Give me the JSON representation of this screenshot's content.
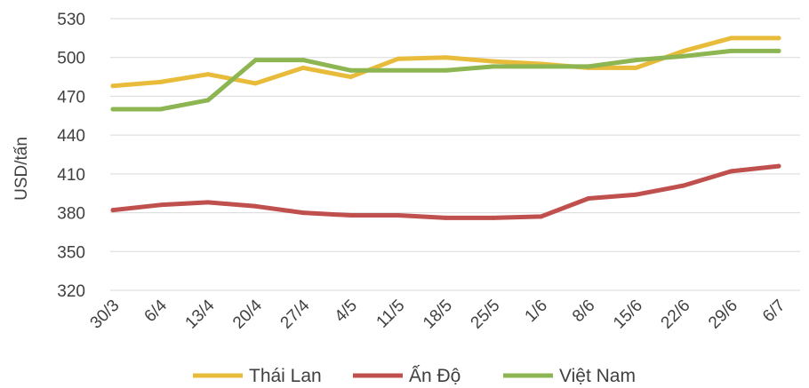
{
  "chart_data": {
    "type": "line",
    "title": "",
    "xlabel": "",
    "ylabel": "USD/tấn",
    "ylim": [
      320,
      530
    ],
    "yticks": [
      320,
      350,
      380,
      410,
      440,
      470,
      500,
      530
    ],
    "grid": "horizontal",
    "legend_position": "bottom",
    "categories": [
      "30/3",
      "6/4",
      "13/4",
      "20/4",
      "27/4",
      "4/5",
      "11/5",
      "18/5",
      "25/5",
      "1/6",
      "8/6",
      "15/6",
      "22/6",
      "29/6",
      "6/7"
    ],
    "series": [
      {
        "name": "Thái Lan",
        "color": "#E8BC3A",
        "values": [
          478,
          481,
          487,
          480,
          492,
          485,
          499,
          500,
          497,
          495,
          492,
          492,
          505,
          515,
          515
        ]
      },
      {
        "name": "Ấn Độ",
        "color": "#C0504D",
        "values": [
          382,
          386,
          388,
          385,
          380,
          378,
          378,
          376,
          376,
          377,
          391,
          394,
          401,
          412,
          416
        ]
      },
      {
        "name": "Việt Nam",
        "color": "#8DB552",
        "values": [
          460,
          460,
          467,
          498,
          498,
          490,
          490,
          490,
          493,
          493,
          493,
          498,
          501,
          505,
          505
        ]
      }
    ]
  }
}
